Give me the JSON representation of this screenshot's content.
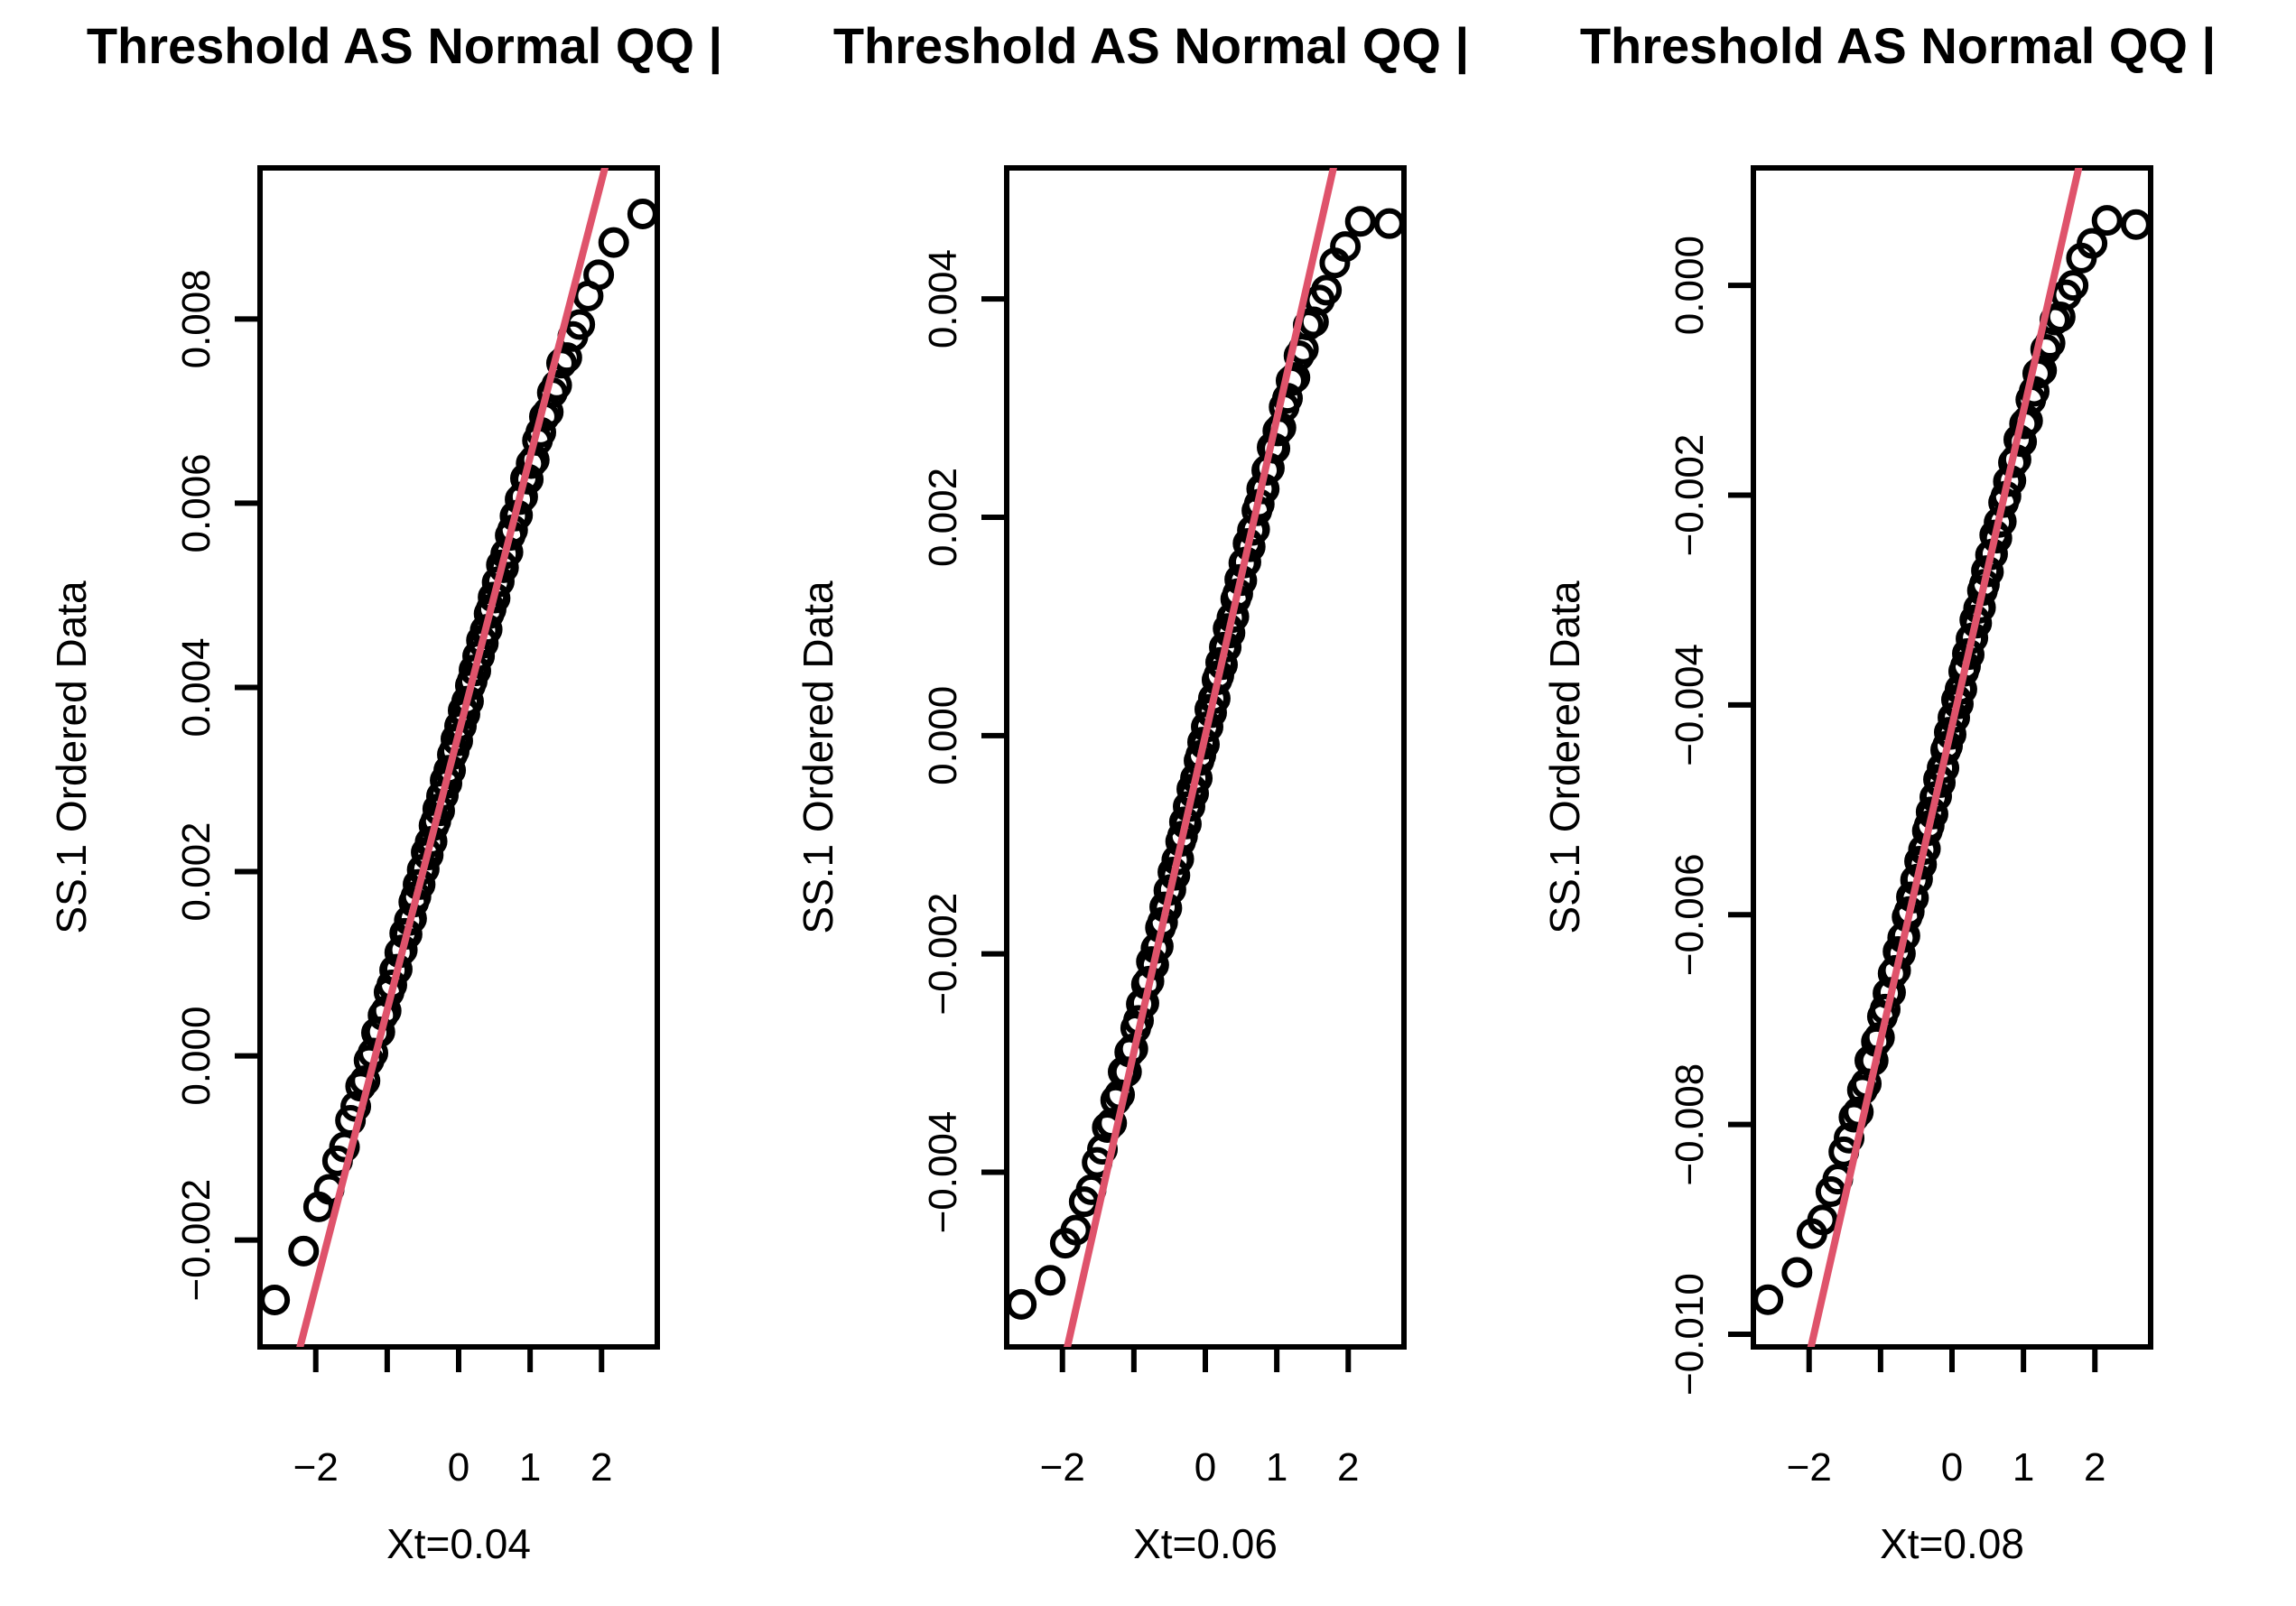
{
  "colors": {
    "background": "#FFFFFF",
    "points": "#000000",
    "axes_text": "#000000",
    "qqline": "#DF536B"
  },
  "chart_data": {
    "type": "scatter",
    "figure_description": "Three side-by-side normal Q-Q plots with reference lines",
    "shared": {
      "title": "Threshold AS Normal QQ |",
      "ylabel": "SS.1 Ordered Data",
      "xlim": [
        -2.78,
        2.78
      ],
      "xtick_values": [
        -2,
        -1,
        0,
        1,
        2
      ],
      "xtick_labels": [
        "−2",
        "",
        "0",
        "1",
        "2"
      ],
      "y_unit": 0.0001,
      "x_normal_quantiles": [
        -2.576,
        -2.17,
        -1.96,
        -1.812,
        -1.695,
        -1.598,
        -1.514,
        -1.44,
        -1.372,
        -1.311,
        -1.254,
        -1.2,
        -1.15,
        -1.103,
        -1.058,
        -1.015,
        -0.974,
        -0.935,
        -0.896,
        -0.86,
        -0.824,
        -0.789,
        -0.755,
        -0.722,
        -0.69,
        -0.659,
        -0.628,
        -0.598,
        -0.568,
        -0.539,
        -0.51,
        -0.482,
        -0.454,
        -0.426,
        -0.399,
        -0.372,
        -0.345,
        -0.319,
        -0.292,
        -0.266,
        -0.24,
        -0.215,
        -0.189,
        -0.164,
        -0.138,
        -0.113,
        -0.088,
        -0.063,
        -0.038,
        -0.013,
        0.013,
        0.038,
        0.063,
        0.088,
        0.113,
        0.138,
        0.164,
        0.189,
        0.215,
        0.24,
        0.266,
        0.292,
        0.319,
        0.345,
        0.372,
        0.399,
        0.426,
        0.454,
        0.482,
        0.51,
        0.539,
        0.568,
        0.598,
        0.628,
        0.659,
        0.69,
        0.722,
        0.755,
        0.789,
        0.824,
        0.86,
        0.896,
        0.935,
        0.974,
        1.015,
        1.058,
        1.103,
        1.15,
        1.2,
        1.254,
        1.311,
        1.372,
        1.44,
        1.514,
        1.598,
        1.695,
        1.812,
        1.96,
        2.17,
        2.576
      ]
    },
    "panels": [
      {
        "title": "Threshold AS Normal QQ |",
        "xlabel": "Xt=0.04",
        "ylabel": "SS.1 Ordered Data",
        "ylim": [
          -0.00316,
          0.00964
        ],
        "ytick_values": [
          0.008,
          0.006,
          0.004,
          0.002,
          0.0,
          -0.002
        ],
        "ytick_labels": [
          "0.008",
          "0.006",
          "0.004",
          "0.002",
          "0.000",
          "−0.002"
        ],
        "qqline": {
          "intercept": 0.0035,
          "slope": 0.003
        },
        "y_ordered_values": [
          -26.5,
          -21.2,
          -16.4,
          -14.5,
          -11.4,
          -9.9,
          -7.0,
          -5.5,
          -3.3,
          -2.7,
          -0.5,
          0.3,
          2.5,
          2.6,
          4.4,
          4.9,
          6.9,
          7.7,
          9.3,
          9.4,
          11.2,
          11.5,
          13.3,
          13.2,
          14.7,
          14.9,
          16.7,
          17.3,
          18.6,
          18.6,
          20.2,
          20.3,
          22.1,
          21.8,
          23.2,
          23.3,
          25.0,
          25.5,
          26.8,
          26.6,
          28.2,
          28.3,
          29.9,
          29.6,
          31.0,
          31.0,
          32.7,
          33.1,
          34.4,
          34.2,
          35.8,
          35.8,
          37.5,
          37.1,
          38.5,
          38.5,
          40.2,
          40.7,
          41.9,
          41.8,
          43.4,
          43.4,
          45.1,
          44.8,
          46.2,
          46.3,
          48.0,
          48.5,
          49.8,
          49.7,
          51.4,
          51.5,
          53.3,
          53.0,
          54.5,
          54.7,
          56.5,
          57.1,
          58.6,
          58.7,
          60.4,
          60.7,
          62.7,
          62.6,
          64.3,
          64.7,
          66.8,
          67.7,
          69.4,
          69.9,
          72.0,
          72.8,
          75.2,
          75.8,
          78.1,
          79.4,
          82.5,
          84.8,
          88.3,
          91.4
        ]
      },
      {
        "title": "Threshold AS Normal QQ |",
        "xlabel": "Xt=0.06",
        "ylabel": "SS.1 Ordered Data",
        "ylim": [
          -0.0056,
          0.0052
        ],
        "ytick_values": [
          0.004,
          0.002,
          0.0,
          -0.002,
          -0.004
        ],
        "ytick_labels": [
          "0.004",
          "0.002",
          "0.000",
          "−0.002",
          "−0.004"
        ],
        "qqline": {
          "intercept": 0.0,
          "slope": 0.0029
        },
        "y_ordered_values": [
          -52.1,
          -49.9,
          -46.5,
          -45.3,
          -42.7,
          -41.6,
          -39.1,
          -37.9,
          -35.9,
          -35.5,
          -33.4,
          -32.9,
          -30.8,
          -30.8,
          -29.0,
          -28.7,
          -26.8,
          -26.1,
          -24.6,
          -24.5,
          -22.8,
          -22.5,
          -20.7,
          -21.0,
          -19.5,
          -19.3,
          -17.6,
          -17.1,
          -15.7,
          -15.8,
          -14.2,
          -14.1,
          -12.5,
          -12.8,
          -11.4,
          -11.3,
          -9.7,
          -9.2,
          -7.9,
          -8.1,
          -6.5,
          -6.5,
          -4.9,
          -5.3,
          -3.9,
          -3.9,
          -2.3,
          -1.8,
          -0.6,
          -0.8,
          0.8,
          0.8,
          2.4,
          2.1,
          3.4,
          3.4,
          5.1,
          5.5,
          6.7,
          6.5,
          8.1,
          8.1,
          9.8,
          9.4,
          10.8,
          10.9,
          12.5,
          13.0,
          14.3,
          14.2,
          15.8,
          15.9,
          17.6,
          17.3,
          18.8,
          18.9,
          20.6,
          21.2,
          22.6,
          22.6,
          24.3,
          24.5,
          26.4,
          26.3,
          27.9,
          28.2,
          30.1,
          30.9,
          32.5,
          32.8,
          34.8,
          35.4,
          37.6,
          37.9,
          39.9,
          40.8,
          43.3,
          44.8,
          47.1,
          46.9
        ]
      },
      {
        "title": "Threshold AS Normal QQ |",
        "xlabel": "Xt=0.08",
        "ylabel": "SS.1 Ordered Data",
        "ylim": [
          -0.01012,
          0.00112
        ],
        "ytick_values": [
          0.0,
          -0.002,
          -0.004,
          -0.006,
          -0.008,
          -0.01
        ],
        "ytick_labels": [
          "0.000",
          "−0.002",
          "−0.004",
          "−0.006",
          "−0.008",
          "−0.010"
        ],
        "qqline": {
          "intercept": -0.0042,
          "slope": 0.003
        },
        "y_ordered_values": [
          -96.7,
          -94.1,
          -90.4,
          -89.1,
          -86.4,
          -85.2,
          -82.6,
          -81.3,
          -79.3,
          -78.8,
          -76.7,
          -76.1,
          -73.9,
          -73.9,
          -72.1,
          -71.7,
          -69.7,
          -69.0,
          -67.5,
          -67.4,
          -65.6,
          -65.3,
          -63.5,
          -63.7,
          -62.2,
          -62.0,
          -60.2,
          -59.7,
          -58.3,
          -58.4,
          -56.7,
          -56.6,
          -54.9,
          -55.2,
          -53.8,
          -53.7,
          -52.0,
          -51.5,
          -50.2,
          -50.4,
          -48.8,
          -48.7,
          -47.1,
          -47.4,
          -46.0,
          -46.0,
          -44.3,
          -43.9,
          -42.6,
          -42.8,
          -41.2,
          -41.2,
          -39.5,
          -39.9,
          -38.5,
          -38.5,
          -36.8,
          -36.3,
          -35.1,
          -35.2,
          -33.7,
          -33.6,
          -31.9,
          -32.2,
          -30.8,
          -30.7,
          -29.1,
          -28.5,
          -27.2,
          -27.3,
          -25.7,
          -25.6,
          -23.8,
          -24.1,
          -22.6,
          -22.5,
          -20.7,
          -20.1,
          -18.7,
          -18.6,
          -16.9,
          -16.6,
          -14.7,
          -14.9,
          -13.2,
          -12.9,
          -10.9,
          -10.1,
          -8.4,
          -8.1,
          -6.1,
          -5.5,
          -3.3,
          -3.0,
          -0.9,
          0.0,
          2.6,
          4.0,
          6.2,
          5.8
        ]
      }
    ]
  }
}
